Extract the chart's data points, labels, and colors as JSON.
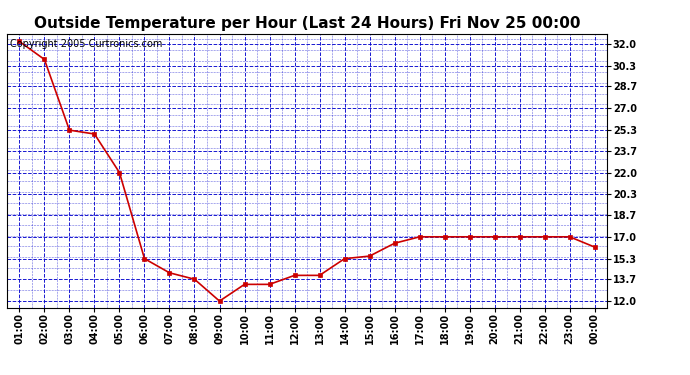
{
  "title": "Outside Temperature per Hour (Last 24 Hours) Fri Nov 25 00:00",
  "copyright_text": "Copyright 2005 Curtronics.com",
  "x_labels": [
    "01:00",
    "02:00",
    "03:00",
    "04:00",
    "05:00",
    "06:00",
    "07:00",
    "08:00",
    "09:00",
    "10:00",
    "11:00",
    "12:00",
    "13:00",
    "14:00",
    "15:00",
    "16:00",
    "17:00",
    "18:00",
    "19:00",
    "20:00",
    "21:00",
    "22:00",
    "23:00",
    "00:00"
  ],
  "y_values": [
    32.2,
    30.8,
    25.3,
    25.0,
    22.0,
    15.3,
    14.2,
    13.7,
    12.0,
    13.3,
    13.3,
    14.0,
    14.0,
    15.3,
    15.5,
    16.5,
    17.0,
    17.0,
    17.0,
    17.0,
    17.0,
    17.0,
    17.0,
    16.2
  ],
  "line_color": "#cc0000",
  "marker_color": "#cc0000",
  "grid_color": "#0000cc",
  "background_color": "#ffffff",
  "plot_background_color": "#ffffff",
  "title_fontsize": 11,
  "copyright_fontsize": 7,
  "tick_label_fontsize": 7,
  "tick_label_fontweight": "bold",
  "y_ticks": [
    12.0,
    13.7,
    15.3,
    17.0,
    18.7,
    20.3,
    22.0,
    23.7,
    25.3,
    27.0,
    28.7,
    30.3,
    32.0
  ],
  "ylim_min": 11.5,
  "ylim_max": 32.8
}
